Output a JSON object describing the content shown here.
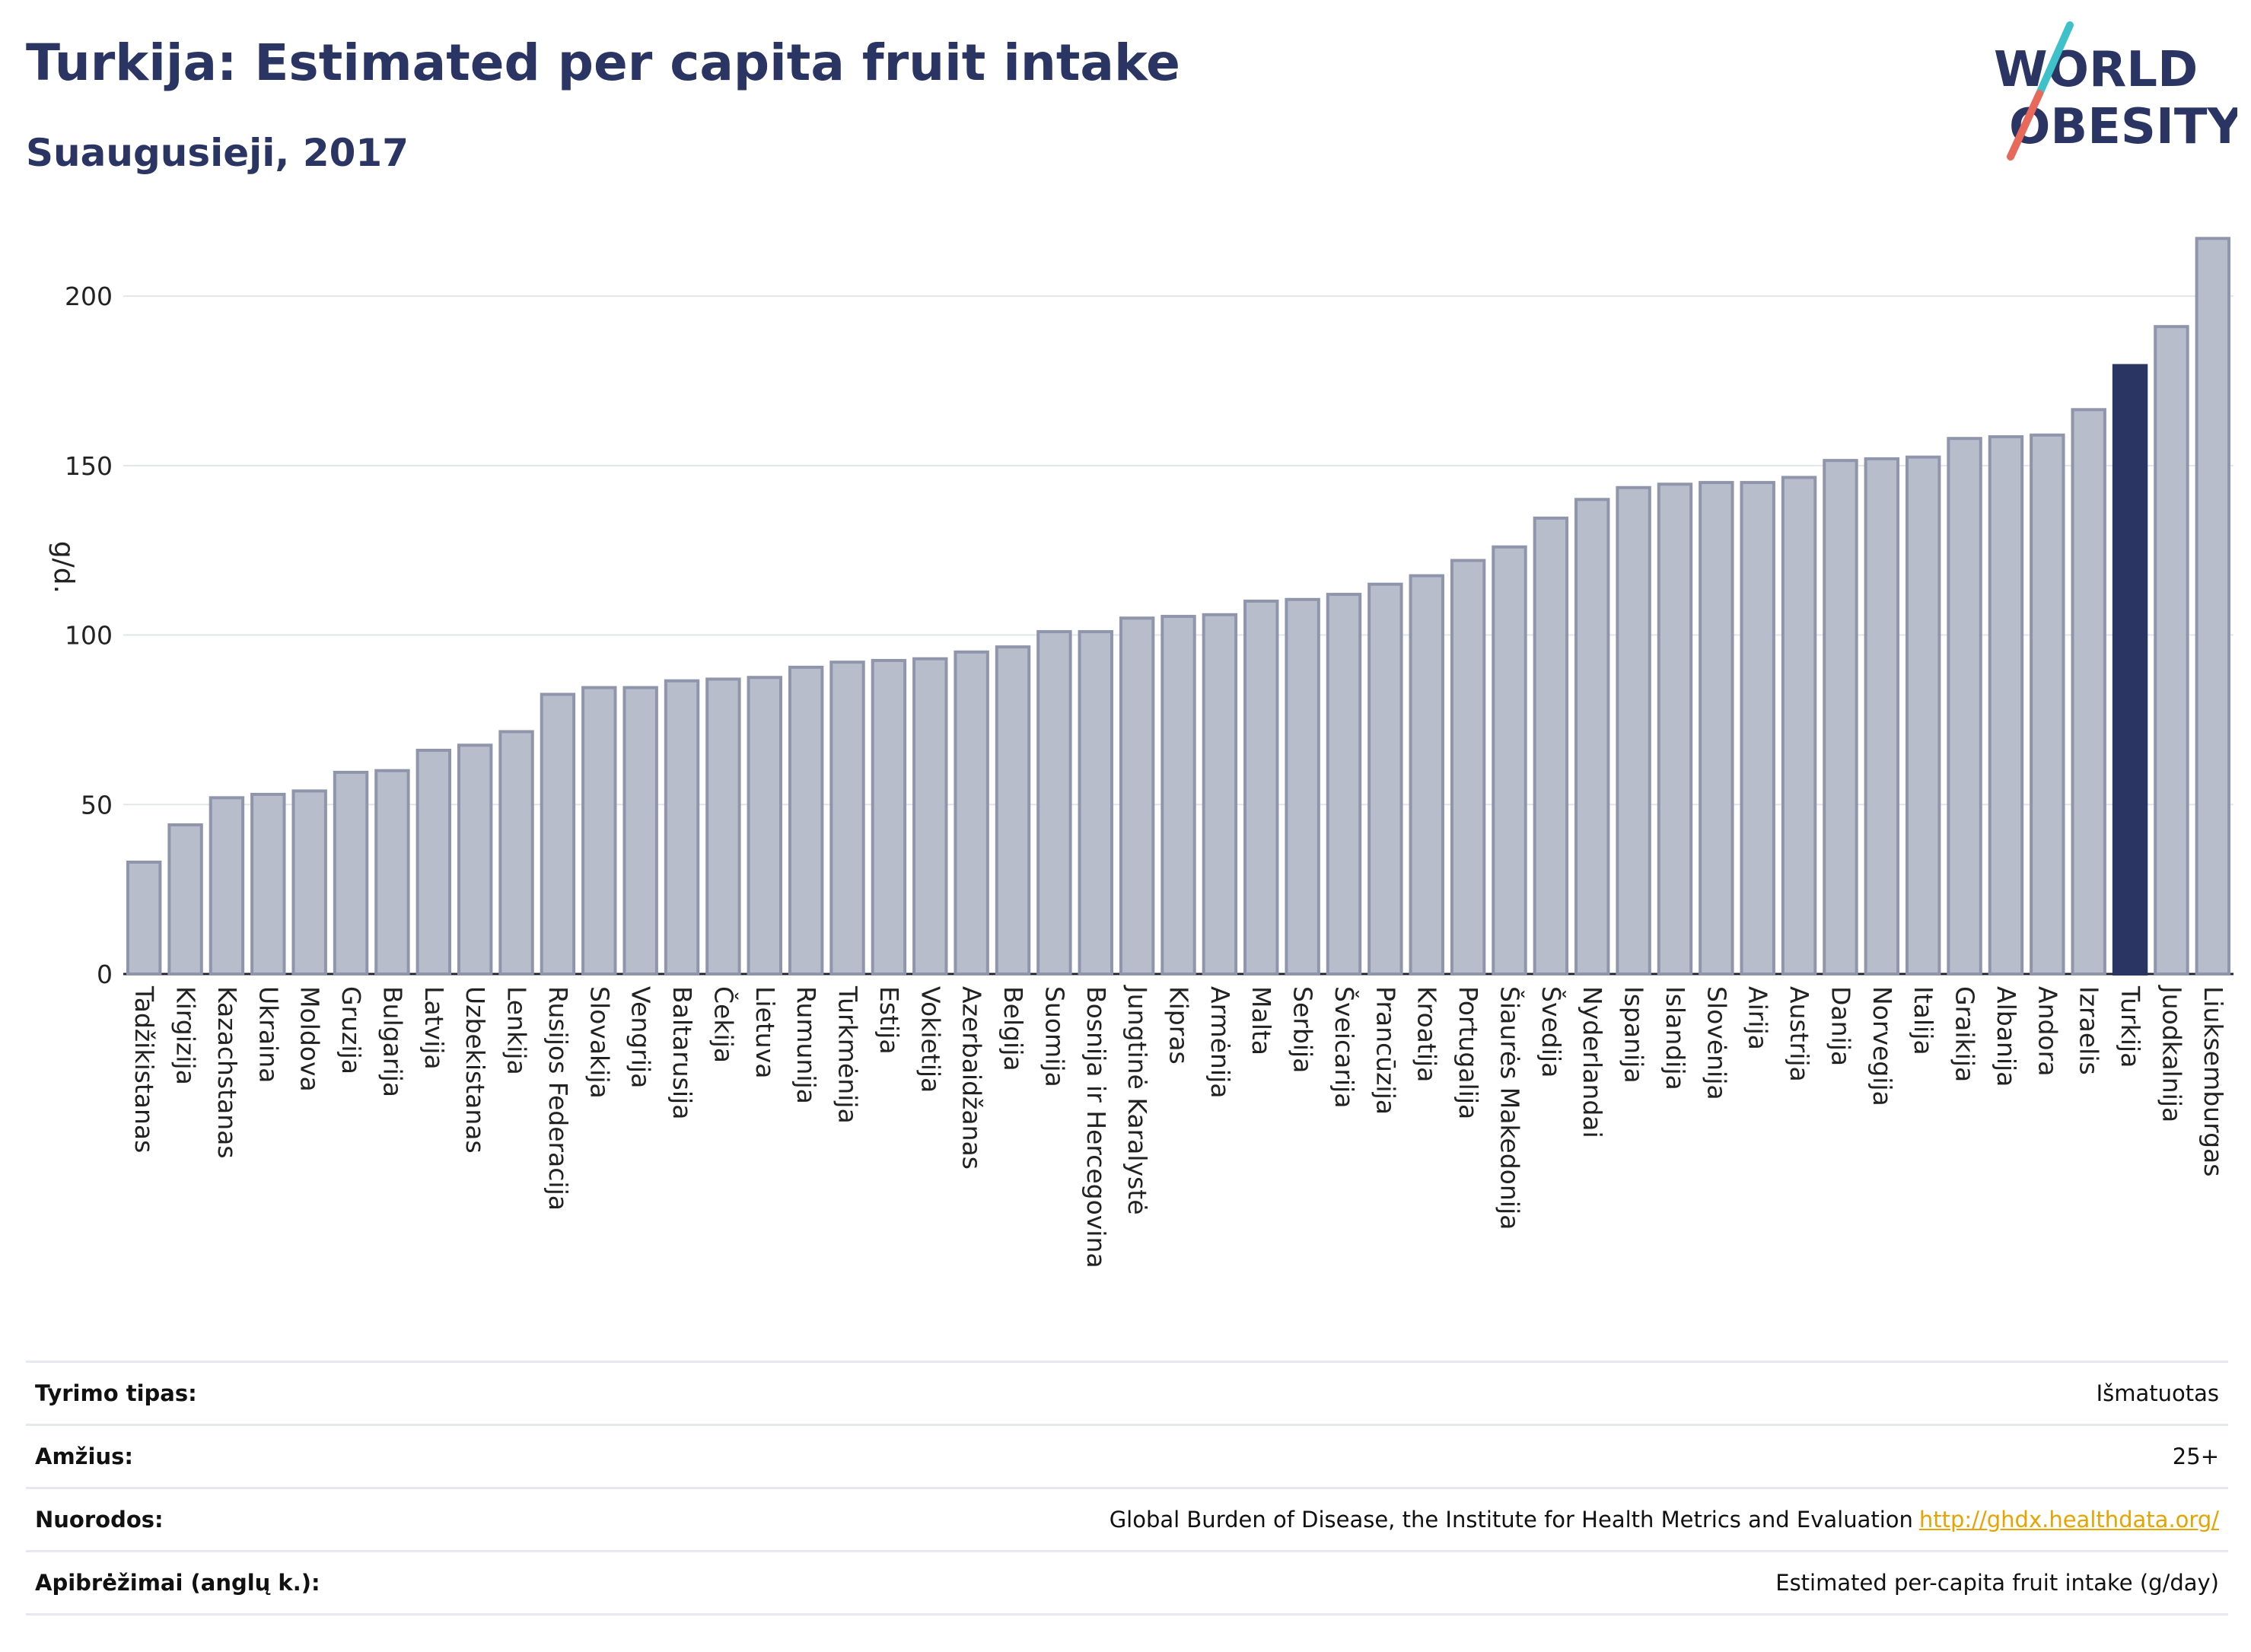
{
  "header": {
    "title": "Turkija: Estimated per capita fruit intake",
    "subtitle": "Suaugusieji, 2017"
  },
  "logo": {
    "line1": "WORLD",
    "line2": "OBESITY"
  },
  "colors": {
    "bar": "#b8bdcc",
    "bar_stroke": "#8f96ab",
    "highlight": "#2b3563",
    "grid": "#e3e5ec",
    "title": "#2b3563",
    "link": "#e8a300"
  },
  "chart_data": {
    "type": "bar",
    "title": "Turkija: Estimated per capita fruit intake",
    "subtitle": "Suaugusieji, 2017",
    "xlabel": "",
    "ylabel": "g/d.",
    "ylim": [
      0,
      220
    ],
    "yticks": [
      0,
      50,
      100,
      150,
      200
    ],
    "grid": true,
    "highlight_category": "Turkija",
    "categories": [
      "Tadžikistanas",
      "Kirgizija",
      "Kazachstanas",
      "Ukraina",
      "Moldova",
      "Gruzija",
      "Bulgarija",
      "Latvija",
      "Uzbekistanas",
      "Lenkija",
      "Rusijos Federacija",
      "Slovakija",
      "Vengrija",
      "Baltarusija",
      "Čekija",
      "Lietuva",
      "Rumunija",
      "Turkmėnija",
      "Estija",
      "Vokietija",
      "Azerbaidžanas",
      "Belgija",
      "Suomija",
      "Bosnija ir Hercegovina",
      "Jungtinė Karalystė",
      "Kipras",
      "Armėnija",
      "Malta",
      "Serbija",
      "Šveicarija",
      "Prancūzija",
      "Kroatija",
      "Portugalija",
      "Šiaurės Makedonija",
      "Švedija",
      "Nyderlandai",
      "Ispanija",
      "Islandija",
      "Slovėnija",
      "Airija",
      "Austrija",
      "Danija",
      "Norvegija",
      "Italija",
      "Graikija",
      "Albanija",
      "Andora",
      "Izraelis",
      "Turkija",
      "Juodkalnija",
      "Liuksemburgas"
    ],
    "values": [
      33,
      44,
      52,
      53,
      54,
      59.5,
      60,
      66,
      67.5,
      71.5,
      82.5,
      84.5,
      84.5,
      86.5,
      87,
      87.5,
      90.5,
      92,
      92.5,
      93,
      95,
      96.5,
      101,
      101,
      105,
      105.5,
      106,
      110,
      110.5,
      112,
      115,
      117.5,
      122,
      126,
      134.5,
      140,
      143.5,
      144.5,
      145,
      145,
      146.5,
      151.5,
      152,
      152.5,
      158,
      158.5,
      159,
      166.5,
      179.5,
      191,
      217
    ]
  },
  "meta": {
    "rows": [
      {
        "label": "Tyrimo tipas:",
        "value": "Išmatuotas"
      },
      {
        "label": "Amžius:",
        "value": "25+"
      },
      {
        "label": "Nuorodos:",
        "value": "Global Burden of Disease, the Institute for Health Metrics and Evaluation",
        "link": "http://ghdx.healthdata.org/"
      },
      {
        "label": "Apibrėžimai (anglų k.):",
        "value": "Estimated per-capita fruit intake (g/day)"
      }
    ]
  }
}
